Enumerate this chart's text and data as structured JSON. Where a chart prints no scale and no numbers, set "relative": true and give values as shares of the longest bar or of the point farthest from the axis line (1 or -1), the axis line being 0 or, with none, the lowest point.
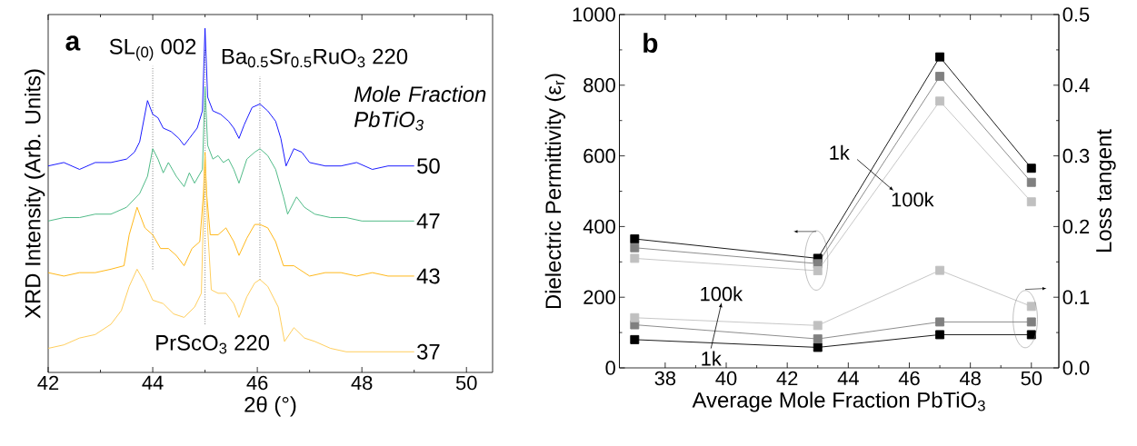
{
  "chart_data": [
    {
      "type": "line",
      "relative": true,
      "xlabel": "2θ (°)",
      "ylabel": "XRD Intensity (Arb. Units)",
      "legend_title": "Mole Fraction PbTiO$_{3}$",
      "annotations": [
        "a"
      ],
      "xlim": [
        42,
        50.5
      ],
      "xticks": [
        42,
        44,
        46,
        48,
        50
      ],
      "ref_lines": [
        {
          "axis": "x",
          "value": 44.0,
          "label": "SL$_{(0)}$ 002",
          "line_style": "dotted"
        },
        {
          "axis": "x",
          "value": 46.05,
          "label": "Ba$_{0.5}$Sr$_{0.5}$RuO$_{3}$ 220",
          "line_style": "dotted"
        },
        {
          "axis": "x",
          "value": 45.0,
          "label": "PrScO$_{3}$ 220",
          "line_style": "dotted"
        }
      ],
      "series": [
        {
          "name": "50",
          "color": "#0000ff",
          "x": [
            42.0,
            42.3,
            42.6,
            42.9,
            43.2,
            43.5,
            43.65,
            43.75,
            43.8,
            43.9,
            44.0,
            44.1,
            44.2,
            44.35,
            44.5,
            44.6,
            44.7,
            44.85,
            44.95,
            45.0,
            45.05,
            45.15,
            45.3,
            45.45,
            45.55,
            45.65,
            45.75,
            45.9,
            46.05,
            46.2,
            46.35,
            46.45,
            46.55,
            46.7,
            46.85,
            47.0,
            47.3,
            47.6,
            47.9,
            48.2,
            48.5,
            48.8,
            49.0
          ],
          "values": [
            0.6,
            0.61,
            0.59,
            0.61,
            0.61,
            0.62,
            0.64,
            0.67,
            0.71,
            0.79,
            0.75,
            0.74,
            0.71,
            0.7,
            0.68,
            0.66,
            0.68,
            0.71,
            0.76,
            1.0,
            0.8,
            0.76,
            0.75,
            0.73,
            0.71,
            0.68,
            0.72,
            0.77,
            0.78,
            0.76,
            0.73,
            0.68,
            0.6,
            0.65,
            0.64,
            0.61,
            0.6,
            0.6,
            0.61,
            0.59,
            0.6,
            0.6,
            0.6
          ]
        },
        {
          "name": "47",
          "color": "#3cb37a",
          "x": [
            42.0,
            42.3,
            42.6,
            42.9,
            43.2,
            43.5,
            43.75,
            43.9,
            44.0,
            44.1,
            44.2,
            44.3,
            44.45,
            44.6,
            44.7,
            44.8,
            44.95,
            45.0,
            45.05,
            45.15,
            45.25,
            45.35,
            45.45,
            45.55,
            45.65,
            45.8,
            45.95,
            46.05,
            46.2,
            46.35,
            46.5,
            46.58,
            46.75,
            46.9,
            47.1,
            47.4,
            47.7,
            48.0,
            48.3,
            48.6,
            49.0
          ],
          "values": [
            0.44,
            0.45,
            0.45,
            0.46,
            0.46,
            0.48,
            0.52,
            0.57,
            0.65,
            0.62,
            0.58,
            0.61,
            0.57,
            0.54,
            0.58,
            0.55,
            0.59,
            0.83,
            0.66,
            0.62,
            0.63,
            0.61,
            0.62,
            0.59,
            0.55,
            0.62,
            0.64,
            0.65,
            0.63,
            0.59,
            0.51,
            0.46,
            0.51,
            0.48,
            0.46,
            0.45,
            0.45,
            0.44,
            0.44,
            0.44,
            0.44
          ]
        },
        {
          "name": "43",
          "color": "#ffb000",
          "x": [
            42.0,
            42.3,
            42.6,
            42.9,
            43.2,
            43.45,
            43.55,
            43.7,
            43.85,
            44.0,
            44.15,
            44.3,
            44.45,
            44.6,
            44.75,
            44.9,
            44.97,
            45.0,
            45.03,
            45.1,
            45.25,
            45.4,
            45.55,
            45.65,
            45.8,
            45.95,
            46.05,
            46.2,
            46.35,
            46.5,
            46.7,
            47.0,
            47.3,
            47.6,
            47.9,
            48.2,
            48.5,
            48.8,
            49.0
          ],
          "values": [
            0.29,
            0.28,
            0.29,
            0.29,
            0.3,
            0.31,
            0.4,
            0.48,
            0.42,
            0.4,
            0.36,
            0.36,
            0.34,
            0.31,
            0.36,
            0.38,
            0.52,
            0.64,
            0.52,
            0.4,
            0.4,
            0.42,
            0.38,
            0.34,
            0.39,
            0.43,
            0.43,
            0.42,
            0.38,
            0.31,
            0.31,
            0.28,
            0.29,
            0.29,
            0.28,
            0.29,
            0.28,
            0.28,
            0.28
          ]
        },
        {
          "name": "37",
          "color": "#ffc84a",
          "x": [
            42.0,
            42.3,
            42.6,
            42.9,
            43.2,
            43.4,
            43.55,
            43.7,
            43.85,
            44.0,
            44.2,
            44.4,
            44.6,
            44.8,
            44.93,
            45.0,
            45.05,
            45.12,
            45.25,
            45.4,
            45.55,
            45.65,
            45.8,
            45.95,
            46.05,
            46.2,
            46.4,
            46.52,
            46.7,
            46.9,
            47.1,
            47.4,
            47.7,
            48.0,
            48.3,
            48.6,
            49.0
          ],
          "values": [
            0.07,
            0.08,
            0.1,
            0.11,
            0.14,
            0.18,
            0.25,
            0.3,
            0.26,
            0.21,
            0.2,
            0.17,
            0.16,
            0.19,
            0.23,
            0.63,
            0.42,
            0.24,
            0.23,
            0.23,
            0.2,
            0.16,
            0.22,
            0.26,
            0.27,
            0.25,
            0.19,
            0.09,
            0.13,
            0.1,
            0.09,
            0.07,
            0.06,
            0.06,
            0.06,
            0.06,
            0.06
          ]
        }
      ]
    },
    {
      "type": "line",
      "marker": "square",
      "xlabel": "Average Mole Fraction PbTiO$_{3}$",
      "ylabel": "Dielectric Permittivity (ε$_{r}$)",
      "y2label": "Loss tangent",
      "annotations": [
        "b",
        "1k",
        "100k",
        "100k",
        "1k"
      ],
      "x": [
        37,
        43,
        47,
        50
      ],
      "xlim": [
        36.5,
        50.9
      ],
      "xticks": [
        38,
        40,
        42,
        44,
        46,
        48,
        50
      ],
      "ylim": [
        0,
        1000
      ],
      "yticks": [
        0,
        200,
        400,
        600,
        800,
        1000
      ],
      "y2lim": [
        0,
        0.5
      ],
      "y2ticks": [
        {
          "value": 0,
          "label": "0.0"
        },
        0.1,
        0.2,
        0.3,
        0.4,
        0.5
      ],
      "series": [
        {
          "color": "#000000",
          "values": [
            365,
            310,
            880,
            565
          ]
        },
        {
          "color": "#808080",
          "values": [
            340,
            295,
            825,
            525
          ]
        },
        {
          "color": "#c0c0c0",
          "values": [
            310,
            275,
            755,
            470
          ]
        },
        {
          "color": "#000000",
          "axis": "y2",
          "values": [
            0.04,
            0.029,
            0.047,
            0.047
          ]
        },
        {
          "color": "#808080",
          "axis": "y2",
          "values": [
            0.061,
            0.041,
            0.065,
            0.065
          ]
        },
        {
          "color": "#c0c0c0",
          "axis": "y2",
          "values": [
            0.071,
            0.06,
            0.138,
            0.087
          ]
        }
      ]
    }
  ]
}
